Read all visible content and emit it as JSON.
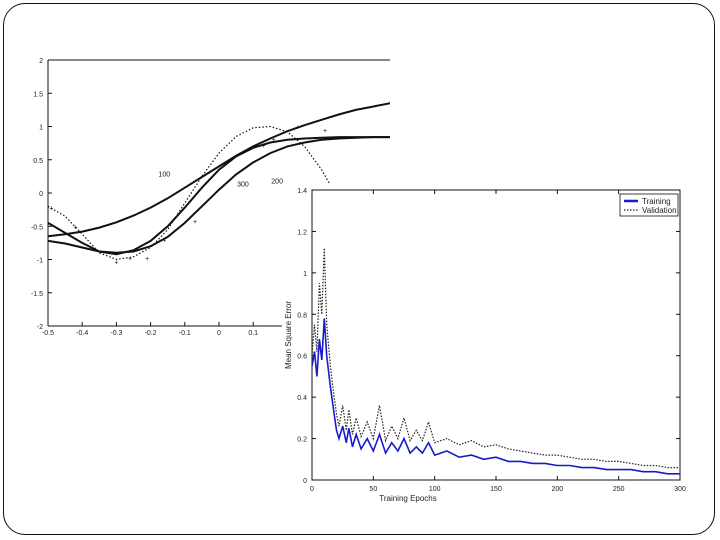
{
  "chart_data": [
    {
      "type": "line",
      "xlim": [
        -0.5,
        0.5
      ],
      "ylim": [
        -2,
        2
      ],
      "x_ticks": [
        "-0.5",
        "-0.4",
        "-0.3",
        "-0.2",
        "-0.1",
        "0",
        "0.1"
      ],
      "y_ticks": [
        "2",
        "1.5",
        "1",
        "0.5",
        "0",
        "-0.5",
        "-1",
        "-1.5",
        "-2"
      ],
      "grid": false,
      "series": [
        {
          "name": "100",
          "style": "solid",
          "x": [
            -0.5,
            -0.45,
            -0.4,
            -0.35,
            -0.3,
            -0.25,
            -0.2,
            -0.15,
            -0.1,
            -0.05,
            0,
            0.05,
            0.1,
            0.15,
            0.2,
            0.25,
            0.3,
            0.35,
            0.4,
            0.45,
            0.5
          ],
          "y": [
            -0.65,
            -0.62,
            -0.58,
            -0.52,
            -0.44,
            -0.34,
            -0.22,
            -0.08,
            0.08,
            0.24,
            0.4,
            0.56,
            0.7,
            0.82,
            0.93,
            1.02,
            1.1,
            1.18,
            1.25,
            1.3,
            1.35
          ]
        },
        {
          "name": "300",
          "style": "solid",
          "x": [
            -0.5,
            -0.45,
            -0.4,
            -0.35,
            -0.3,
            -0.25,
            -0.2,
            -0.15,
            -0.1,
            -0.05,
            0,
            0.05,
            0.1,
            0.15,
            0.2,
            0.25,
            0.3,
            0.35,
            0.4,
            0.45,
            0.5
          ],
          "y": [
            -0.45,
            -0.6,
            -0.75,
            -0.88,
            -0.92,
            -0.86,
            -0.72,
            -0.5,
            -0.22,
            0.08,
            0.35,
            0.55,
            0.68,
            0.76,
            0.8,
            0.82,
            0.83,
            0.84,
            0.84,
            0.84,
            0.84
          ]
        },
        {
          "name": "200",
          "style": "solid",
          "x": [
            -0.5,
            -0.45,
            -0.4,
            -0.35,
            -0.3,
            -0.25,
            -0.2,
            -0.15,
            -0.1,
            -0.05,
            0,
            0.05,
            0.1,
            0.15,
            0.2,
            0.25,
            0.3,
            0.35,
            0.4,
            0.45,
            0.5
          ],
          "y": [
            -0.72,
            -0.76,
            -0.82,
            -0.88,
            -0.9,
            -0.88,
            -0.8,
            -0.66,
            -0.45,
            -0.2,
            0.05,
            0.28,
            0.46,
            0.6,
            0.7,
            0.76,
            0.8,
            0.82,
            0.83,
            0.84,
            0.84
          ]
        },
        {
          "name": "",
          "style": "dotted",
          "x": [
            -0.5,
            -0.45,
            -0.4,
            -0.35,
            -0.3,
            -0.25,
            -0.2,
            -0.15,
            -0.1,
            -0.05,
            0,
            0.05,
            0.1,
            0.15,
            0.2,
            0.25,
            0.3,
            0.35,
            0.4,
            0.45,
            0.5
          ],
          "y": [
            -0.2,
            -0.35,
            -0.62,
            -0.9,
            -1.0,
            -0.96,
            -0.82,
            -0.55,
            -0.15,
            0.25,
            0.6,
            0.85,
            0.98,
            1.0,
            0.92,
            0.7,
            0.35,
            -0.1,
            -0.55,
            -0.95,
            -1.3
          ]
        }
      ],
      "markers": {
        "symbol": "+",
        "x": [
          -0.49,
          -0.42,
          -0.3,
          -0.26,
          -0.21,
          -0.16,
          -0.07,
          0.13,
          0.16,
          0.23,
          0.31
        ],
        "y": [
          -0.22,
          -0.5,
          -1.03,
          -0.98,
          -0.98,
          -0.7,
          -0.42,
          0.72,
          0.82,
          1.0,
          0.95
        ]
      },
      "annotations": [
        "100",
        "300",
        "200"
      ]
    },
    {
      "type": "line",
      "xlabel": "Training Epochs",
      "ylabel": "Mean Square Error",
      "xlim": [
        0,
        300
      ],
      "ylim": [
        0,
        1.4
      ],
      "x_ticks": [
        "0",
        "50",
        "100",
        "150",
        "200",
        "250",
        "300"
      ],
      "y_ticks": [
        "1.4",
        "1.2",
        "1",
        "0.8",
        "0.6",
        "0.4",
        "0.2",
        "0"
      ],
      "grid": false,
      "legend_position": "top-right",
      "series": [
        {
          "name": "Training",
          "color": "#1a1acc",
          "style": "solid",
          "x": [
            0,
            2,
            4,
            6,
            8,
            10,
            12,
            15,
            18,
            20,
            22,
            25,
            28,
            30,
            33,
            36,
            40,
            45,
            50,
            55,
            60,
            65,
            70,
            75,
            80,
            85,
            90,
            95,
            100,
            110,
            120,
            130,
            140,
            150,
            160,
            170,
            180,
            190,
            200,
            210,
            220,
            230,
            240,
            250,
            260,
            270,
            280,
            290,
            300
          ],
          "y": [
            0.55,
            0.62,
            0.5,
            0.68,
            0.58,
            0.78,
            0.6,
            0.45,
            0.32,
            0.24,
            0.2,
            0.26,
            0.18,
            0.25,
            0.16,
            0.22,
            0.15,
            0.2,
            0.14,
            0.22,
            0.13,
            0.18,
            0.14,
            0.2,
            0.13,
            0.16,
            0.13,
            0.18,
            0.12,
            0.14,
            0.11,
            0.12,
            0.1,
            0.11,
            0.09,
            0.09,
            0.08,
            0.08,
            0.07,
            0.07,
            0.06,
            0.06,
            0.05,
            0.05,
            0.05,
            0.04,
            0.04,
            0.03,
            0.03
          ]
        },
        {
          "name": "Validation",
          "color": "#222222",
          "style": "dotted",
          "x": [
            0,
            2,
            4,
            6,
            8,
            10,
            12,
            15,
            18,
            20,
            22,
            25,
            28,
            30,
            33,
            36,
            40,
            45,
            50,
            55,
            60,
            65,
            70,
            75,
            80,
            85,
            90,
            95,
            100,
            110,
            120,
            130,
            140,
            150,
            160,
            170,
            180,
            190,
            200,
            210,
            220,
            230,
            240,
            250,
            260,
            270,
            280,
            290,
            300
          ],
          "y": [
            0.6,
            0.75,
            0.62,
            0.95,
            0.8,
            1.12,
            0.75,
            0.55,
            0.4,
            0.32,
            0.26,
            0.36,
            0.24,
            0.34,
            0.22,
            0.3,
            0.21,
            0.28,
            0.2,
            0.36,
            0.19,
            0.26,
            0.2,
            0.3,
            0.19,
            0.24,
            0.19,
            0.28,
            0.18,
            0.2,
            0.17,
            0.19,
            0.16,
            0.17,
            0.15,
            0.14,
            0.13,
            0.12,
            0.12,
            0.11,
            0.1,
            0.1,
            0.09,
            0.09,
            0.08,
            0.07,
            0.07,
            0.06,
            0.06
          ]
        }
      ]
    }
  ]
}
